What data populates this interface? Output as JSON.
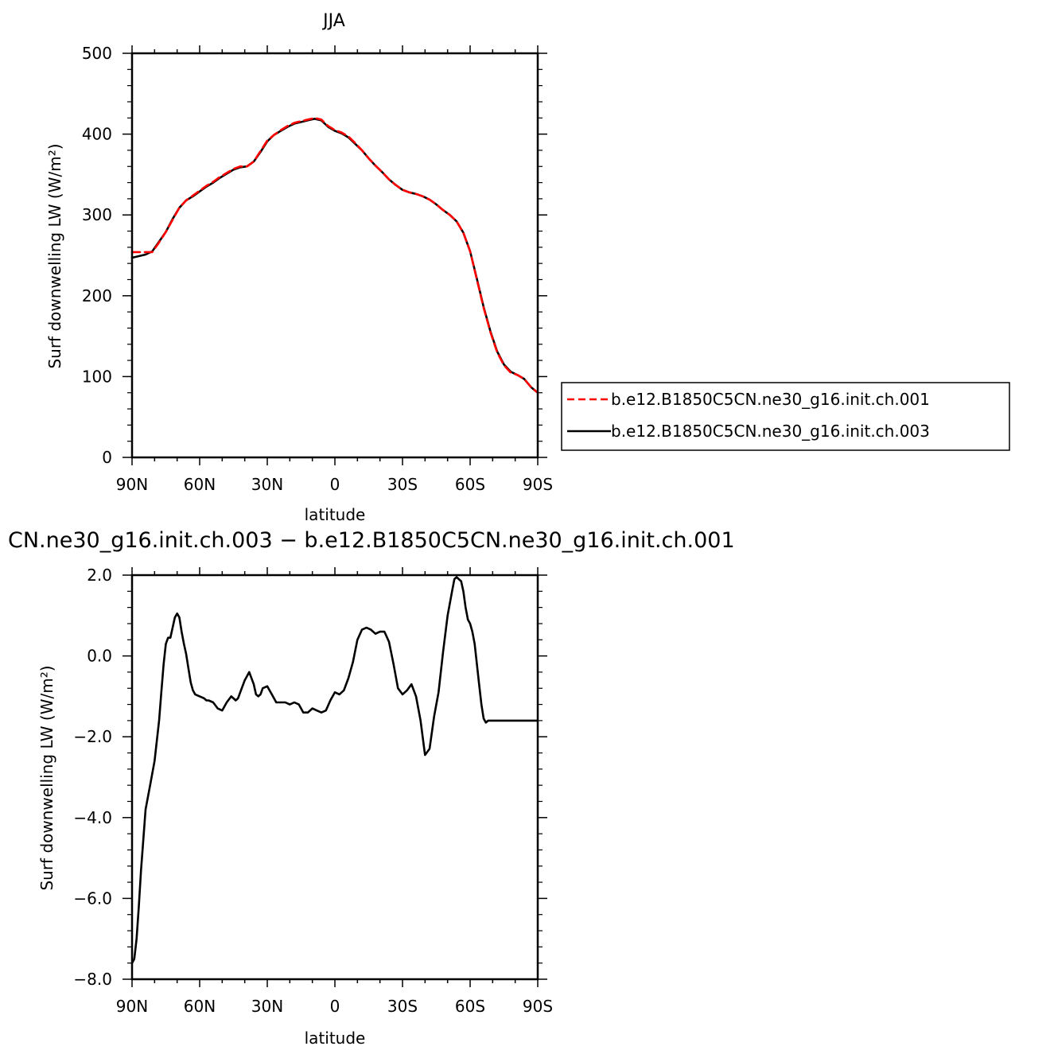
{
  "chart_data": [
    {
      "type": "line",
      "title": "JJA",
      "xlabel": "latitude",
      "ylabel": "Surf downwelling LW (W/m²)",
      "x_tick_labels": [
        "90N",
        "60N",
        "30N",
        "0",
        "30S",
        "60S",
        "90S"
      ],
      "y_tick_labels": [
        "0",
        "100",
        "200",
        "300",
        "400",
        "500"
      ],
      "xlim": [
        90,
        -90
      ],
      "ylim": [
        0,
        500
      ],
      "legend": "right",
      "series": [
        {
          "name": "b.e12.B1850C5CN.ne30_g16.init.ch.001",
          "color": "#ff0000",
          "dash": "dashed",
          "x": [
            90,
            87,
            84,
            81,
            78,
            75,
            72,
            69,
            66,
            63,
            60,
            57,
            54,
            51,
            48,
            45,
            42,
            39,
            36,
            33,
            30,
            27,
            24,
            21,
            18,
            15,
            12,
            9,
            6,
            3,
            0,
            -3,
            -6,
            -9,
            -12,
            -15,
            -18,
            -21,
            -24,
            -27,
            -30,
            -33,
            -36,
            -39,
            -42,
            -45,
            -48,
            -51,
            -54,
            -57,
            -60,
            -63,
            -66,
            -69,
            -72,
            -75,
            -78,
            -81,
            -84,
            -87,
            -90
          ],
          "y": [
            254,
            254,
            254,
            254,
            266,
            279,
            294,
            309,
            318,
            324,
            330,
            336,
            341,
            347,
            352,
            357,
            360,
            360,
            366,
            379,
            392,
            399,
            405,
            410,
            414,
            416,
            418,
            420,
            418,
            410,
            405,
            402,
            397,
            389,
            380,
            370,
            361,
            353,
            344,
            337,
            331,
            328,
            326,
            323,
            319,
            313,
            306,
            300,
            292,
            278,
            255,
            220,
            185,
            155,
            130,
            114,
            105,
            102,
            97,
            87,
            80
          ]
        },
        {
          "name": "b.e12.B1850C5CN.ne30_g16.init.ch.003",
          "color": "#000000",
          "dash": "solid",
          "x": [
            90,
            87,
            84,
            81,
            78,
            75,
            72,
            69,
            66,
            63,
            60,
            57,
            54,
            51,
            48,
            45,
            42,
            39,
            36,
            33,
            30,
            27,
            24,
            21,
            18,
            15,
            12,
            9,
            6,
            3,
            0,
            -3,
            -6,
            -9,
            -12,
            -15,
            -18,
            -21,
            -24,
            -27,
            -30,
            -33,
            -36,
            -39,
            -42,
            -45,
            -48,
            -51,
            -54,
            -57,
            -60,
            -63,
            -66,
            -69,
            -72,
            -75,
            -78,
            -81,
            -84,
            -87,
            -90
          ],
          "y": [
            247,
            249,
            251,
            255,
            267,
            279,
            295,
            309,
            318,
            323,
            329,
            335,
            340,
            346,
            351,
            356,
            359,
            360,
            366,
            378,
            391,
            399,
            404,
            409,
            413,
            415,
            417,
            419,
            417,
            409,
            404,
            401,
            396,
            388,
            380,
            370,
            361,
            353,
            344,
            337,
            331,
            328,
            326,
            323,
            319,
            313,
            306,
            300,
            292,
            278,
            255,
            221,
            186,
            156,
            131,
            115,
            106,
            102,
            97,
            87,
            80
          ]
        }
      ]
    },
    {
      "type": "line",
      "title": "CN.ne30_g16.init.ch.003 − b.e12.B1850C5CN.ne30_g16.init.ch.001",
      "xlabel": "latitude",
      "ylabel": "Surf downwelling LW (W/m²)",
      "x_tick_labels": [
        "90N",
        "60N",
        "30N",
        "0",
        "30S",
        "60S",
        "90S"
      ],
      "y_tick_labels": [
        "−8.0",
        "−6.0",
        "−4.0",
        "−2.0",
        "0.0",
        "2.0"
      ],
      "xlim": [
        90,
        -90
      ],
      "ylim": [
        -8,
        2
      ],
      "series": [
        {
          "color": "#000000",
          "dash": "solid",
          "x": [
            90,
            89,
            88,
            87,
            86,
            84,
            82,
            80,
            78,
            77,
            76,
            75,
            74,
            73,
            72,
            71,
            70,
            69,
            68,
            67,
            66,
            65,
            64,
            63,
            62,
            60,
            58,
            57,
            56,
            54,
            52,
            50,
            48,
            46,
            45,
            44,
            43,
            42,
            40,
            38,
            36,
            35,
            34,
            33,
            32,
            30,
            28,
            26,
            24,
            22,
            20,
            18,
            16,
            14,
            12,
            10,
            8,
            6,
            4,
            2,
            0,
            -2,
            -4,
            -6,
            -8,
            -10,
            -12,
            -14,
            -16,
            -18,
            -20,
            -22,
            -24,
            -26,
            -28,
            -30,
            -32,
            -34,
            -36,
            -38,
            -40,
            -42,
            -44,
            -46,
            -48,
            -50,
            -52,
            -53,
            -54,
            -55,
            -56,
            -57,
            -58,
            -59,
            -60,
            -61,
            -62,
            -63,
            -64,
            -65,
            -66,
            -67,
            -68,
            -69,
            -70,
            -71,
            -72,
            -73,
            -74,
            -75,
            -76,
            -78,
            -80,
            -82,
            -84,
            -86,
            -88,
            -90
          ],
          "y": [
            -7.6,
            -7.5,
            -7.0,
            -6.2,
            -5.3,
            -3.8,
            -3.2,
            -2.6,
            -1.6,
            -0.9,
            -0.2,
            0.3,
            0.45,
            0.45,
            0.7,
            0.95,
            1.05,
            0.95,
            0.6,
            0.3,
            0.05,
            -0.3,
            -0.65,
            -0.85,
            -0.95,
            -1.0,
            -1.05,
            -1.1,
            -1.1,
            -1.15,
            -1.3,
            -1.35,
            -1.15,
            -1.0,
            -1.05,
            -1.1,
            -1.05,
            -0.9,
            -0.6,
            -0.4,
            -0.7,
            -0.95,
            -1.0,
            -0.95,
            -0.8,
            -0.75,
            -0.95,
            -1.15,
            -1.15,
            -1.15,
            -1.2,
            -1.15,
            -1.2,
            -1.4,
            -1.4,
            -1.3,
            -1.35,
            -1.4,
            -1.35,
            -1.1,
            -0.9,
            -0.95,
            -0.85,
            -0.55,
            -0.15,
            0.4,
            0.65,
            0.7,
            0.65,
            0.55,
            0.6,
            0.6,
            0.35,
            -0.2,
            -0.8,
            -0.95,
            -0.85,
            -0.7,
            -1.0,
            -1.6,
            -2.45,
            -2.3,
            -1.5,
            -0.9,
            0.1,
            1.0,
            1.6,
            1.9,
            1.95,
            1.9,
            1.85,
            1.6,
            1.2,
            0.9,
            0.8,
            0.6,
            0.3,
            -0.2,
            -0.7,
            -1.2,
            -1.55,
            -1.65,
            -1.6,
            -1.6,
            -1.6,
            -1.6,
            -1.6,
            -1.6,
            -1.6,
            -1.6,
            -1.6,
            -1.6,
            -1.6,
            -1.6,
            -1.6,
            -1.6,
            -1.6,
            -1.6
          ]
        }
      ]
    }
  ]
}
